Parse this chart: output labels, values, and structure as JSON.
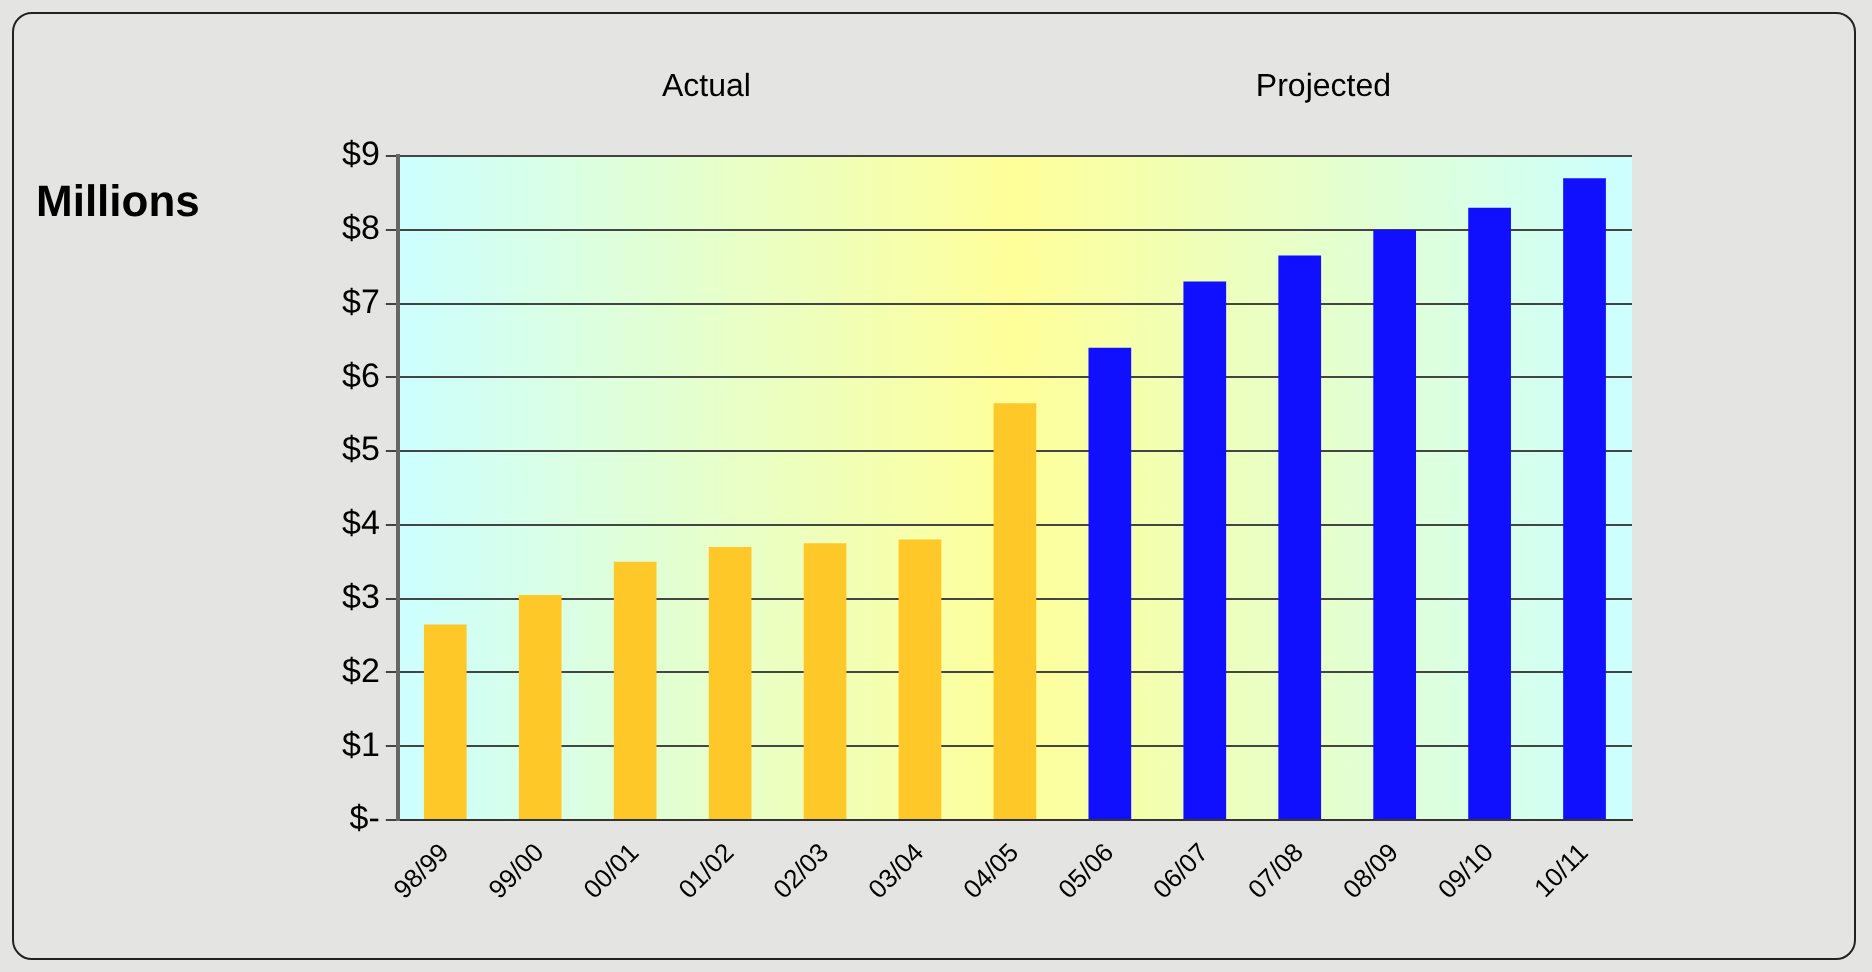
{
  "chart_data": {
    "type": "bar",
    "ylabel": "Millions",
    "annotations": [
      "Actual",
      "Projected"
    ],
    "categories": [
      "98/99",
      "99/00",
      "00/01",
      "01/02",
      "02/03",
      "03/04",
      "04/05",
      "05/06",
      "06/07",
      "07/08",
      "08/09",
      "09/10",
      "10/11"
    ],
    "values": [
      2.65,
      3.05,
      3.5,
      3.7,
      3.75,
      3.8,
      5.65,
      6.4,
      7.3,
      7.65,
      8.0,
      8.3,
      8.7
    ],
    "colors": [
      "#ffc829",
      "#ffc829",
      "#ffc829",
      "#ffc829",
      "#ffc829",
      "#ffc829",
      "#ffc829",
      "#1010ff",
      "#1010ff",
      "#1010ff",
      "#1010ff",
      "#1010ff",
      "#1010ff"
    ],
    "ylim": [
      0,
      9
    ],
    "yticks": [
      {
        "value": 0,
        "label": "$-"
      },
      {
        "value": 1,
        "label": "$1"
      },
      {
        "value": 2,
        "label": "$2"
      },
      {
        "value": 3,
        "label": "$3"
      },
      {
        "value": 4,
        "label": "$4"
      },
      {
        "value": 5,
        "label": "$5"
      },
      {
        "value": 6,
        "label": "$6"
      },
      {
        "value": 7,
        "label": "$7"
      },
      {
        "value": 8,
        "label": "$8"
      },
      {
        "value": 9,
        "label": "$9"
      }
    ],
    "grid": "y",
    "legend": false
  }
}
